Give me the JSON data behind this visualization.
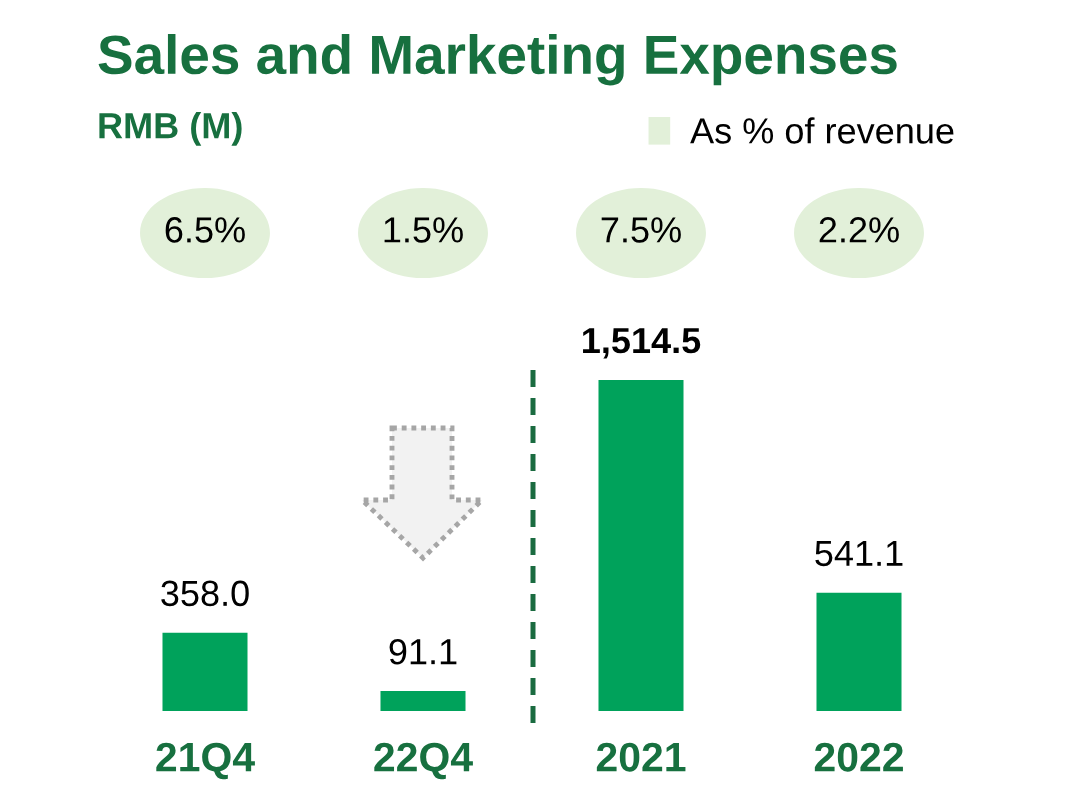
{
  "chart_data": [
    {
      "type": "other",
      "title": "Sales and Marketing Expenses",
      "subtitle": "RMB (M)",
      "categories": [
        null,
        null,
        null,
        null
      ],
      "series": [
        {
          "name": "As % of revenue",
          "color": "#e2f0d9",
          "values": [
            6.5,
            1.5,
            7.5,
            2.2
          ],
          "value_labels": [
            "6.5%",
            "1.5%",
            "7.5%",
            "2.2%"
          ]
        }
      ],
      "legend": "top right"
    },
    {
      "type": "bar",
      "categories": [
        "21Q4",
        "22Q4",
        "2021",
        "2022"
      ],
      "series": [
        {
          "values": [
            358.0,
            91.1,
            1514.5,
            541.1
          ],
          "color": "#00a25b",
          "value_labels": [
            "358.0",
            "91.1",
            "1,514.5",
            "541.1"
          ]
        }
      ],
      "tick_labels": "x"
    }
  ]
}
